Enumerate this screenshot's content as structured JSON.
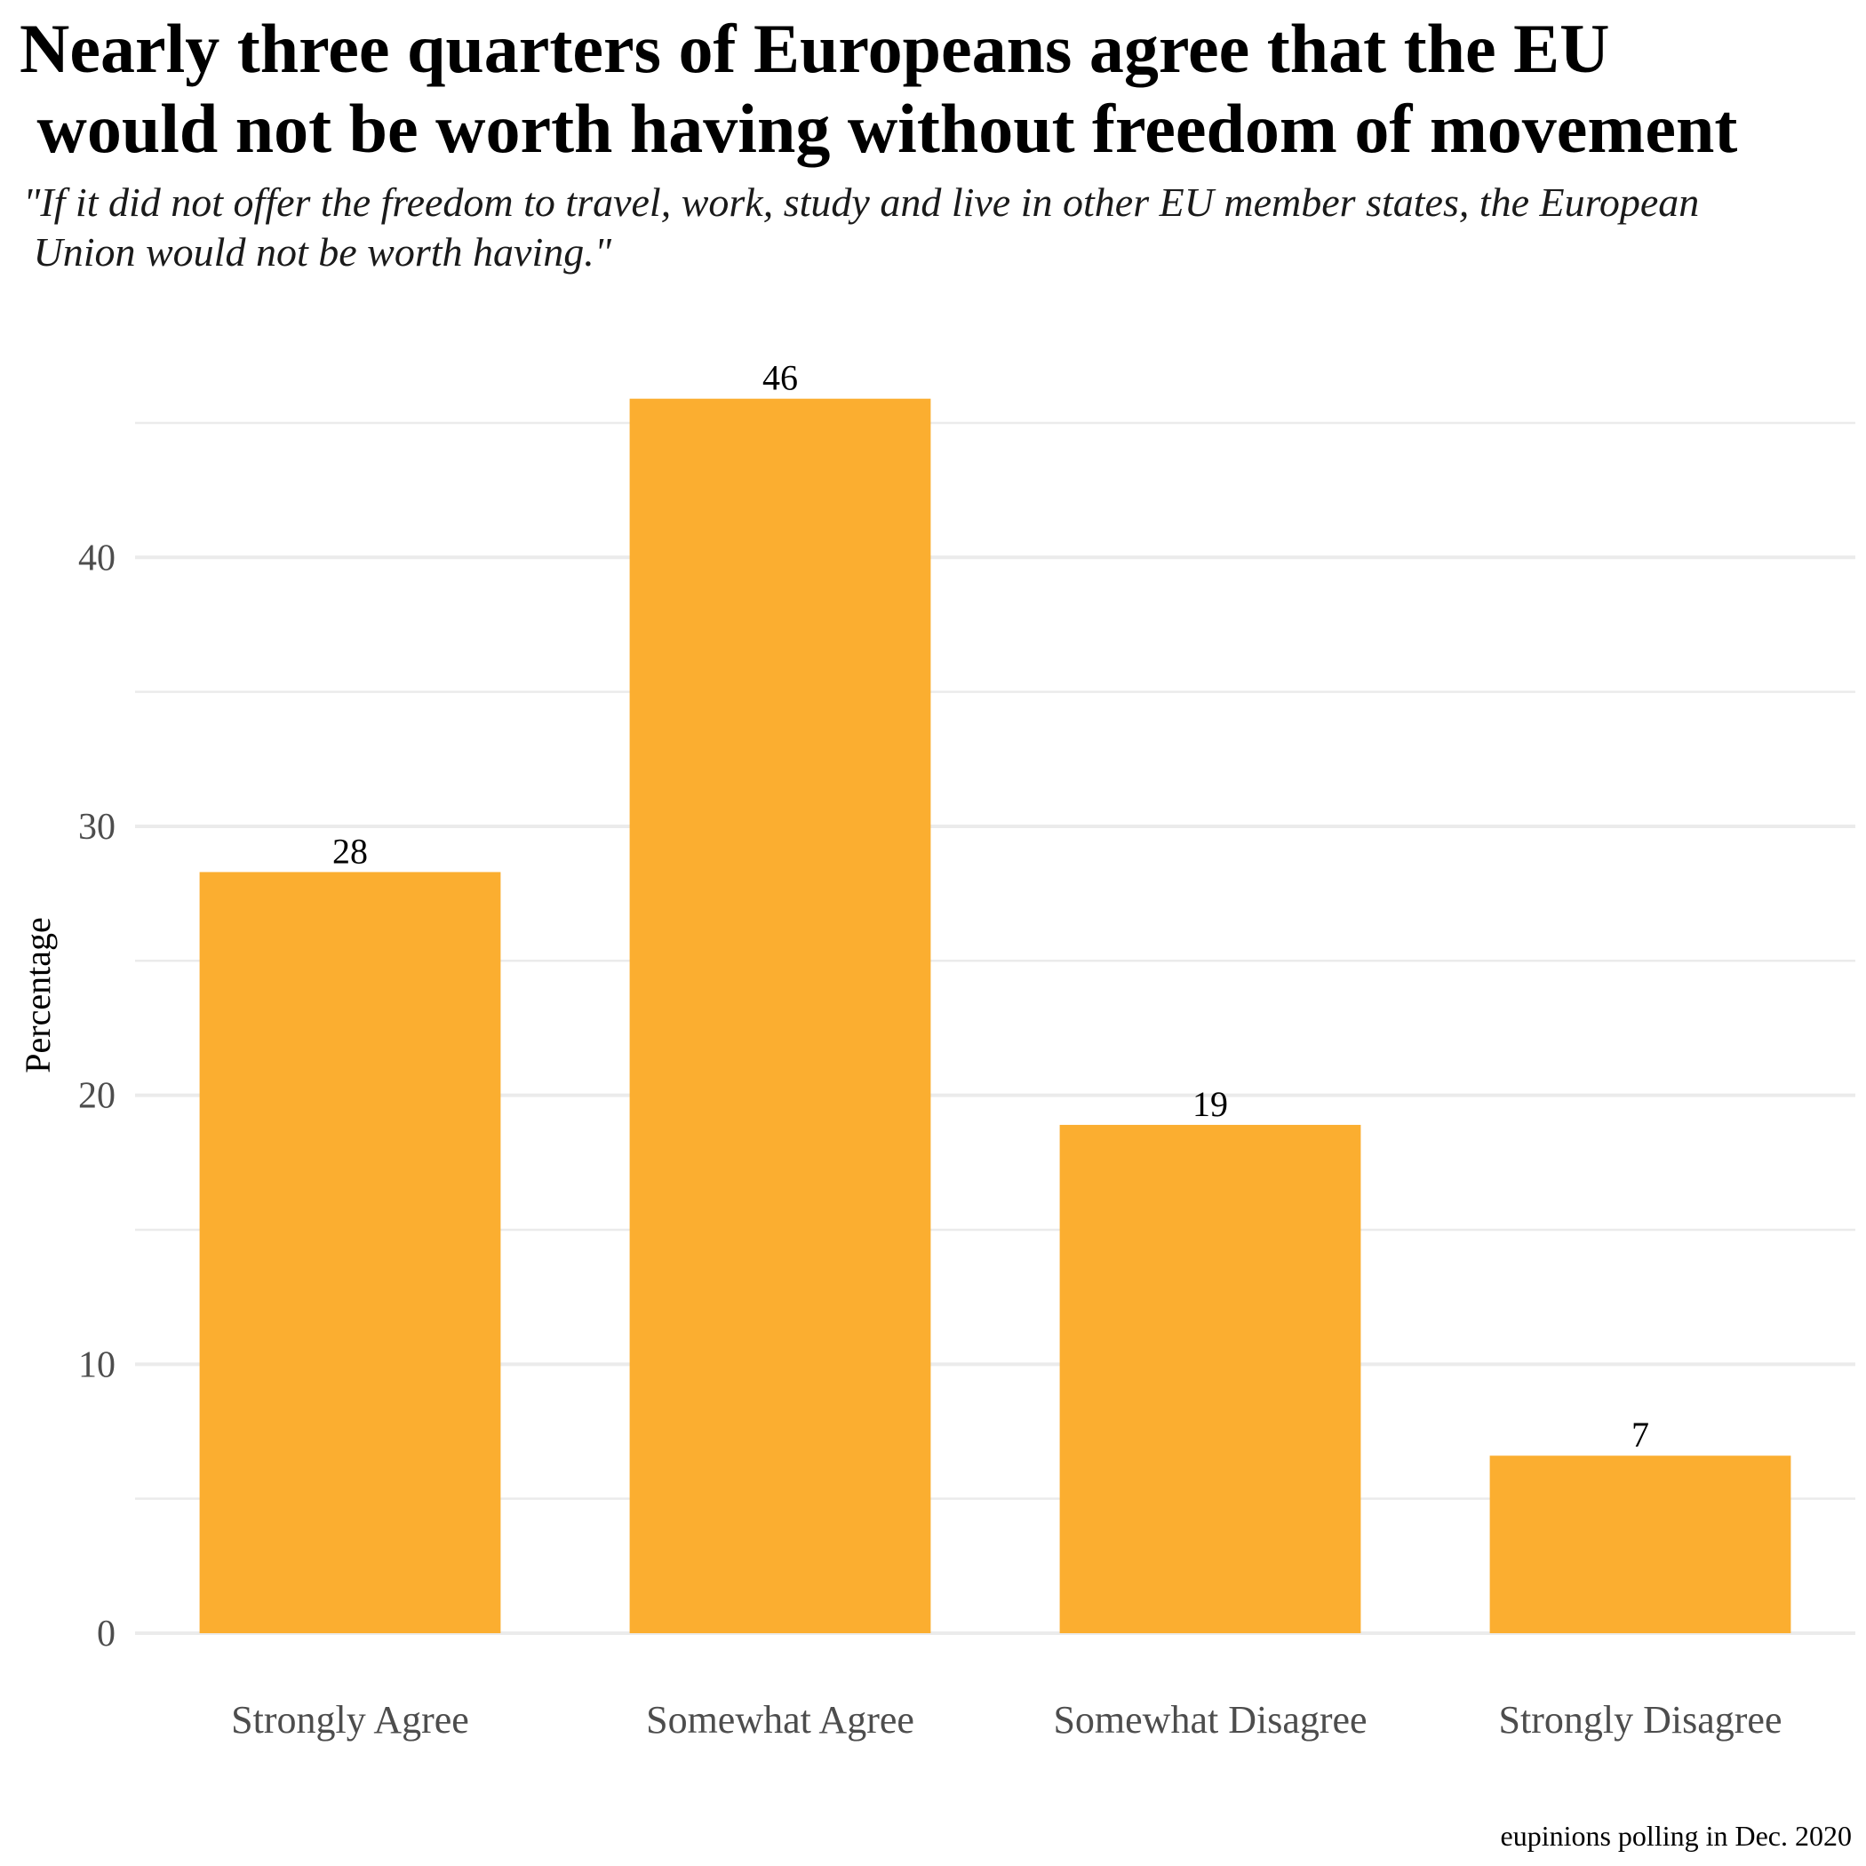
{
  "chart_data": {
    "type": "bar",
    "title_lines": [
      "Nearly three quarters of Europeans agree that the EU",
      " would not be worth having without freedom of movement"
    ],
    "subtitle_lines": [
      "\"If it did not offer the freedom to travel, work, study and live in other EU member states, the European",
      " Union would not be worth having.\""
    ],
    "categories": [
      "Strongly Agree",
      "Somewhat Agree",
      "Somewhat Disagree",
      "Strongly Disagree"
    ],
    "values": [
      28.3,
      45.9,
      18.9,
      6.6
    ],
    "data_labels": [
      "28",
      "46",
      "19",
      "7"
    ],
    "ylabel": "Percentage",
    "xlabel": "",
    "ylim": [
      0,
      48.5
    ],
    "yticks": [
      0,
      10,
      20,
      30,
      40
    ],
    "grid": true,
    "bar_color": "#FBAE30",
    "grid_color": "#EBEBEB",
    "tick_label_color": "#4D4D4D",
    "caption": "eupinions polling in Dec. 2020"
  }
}
